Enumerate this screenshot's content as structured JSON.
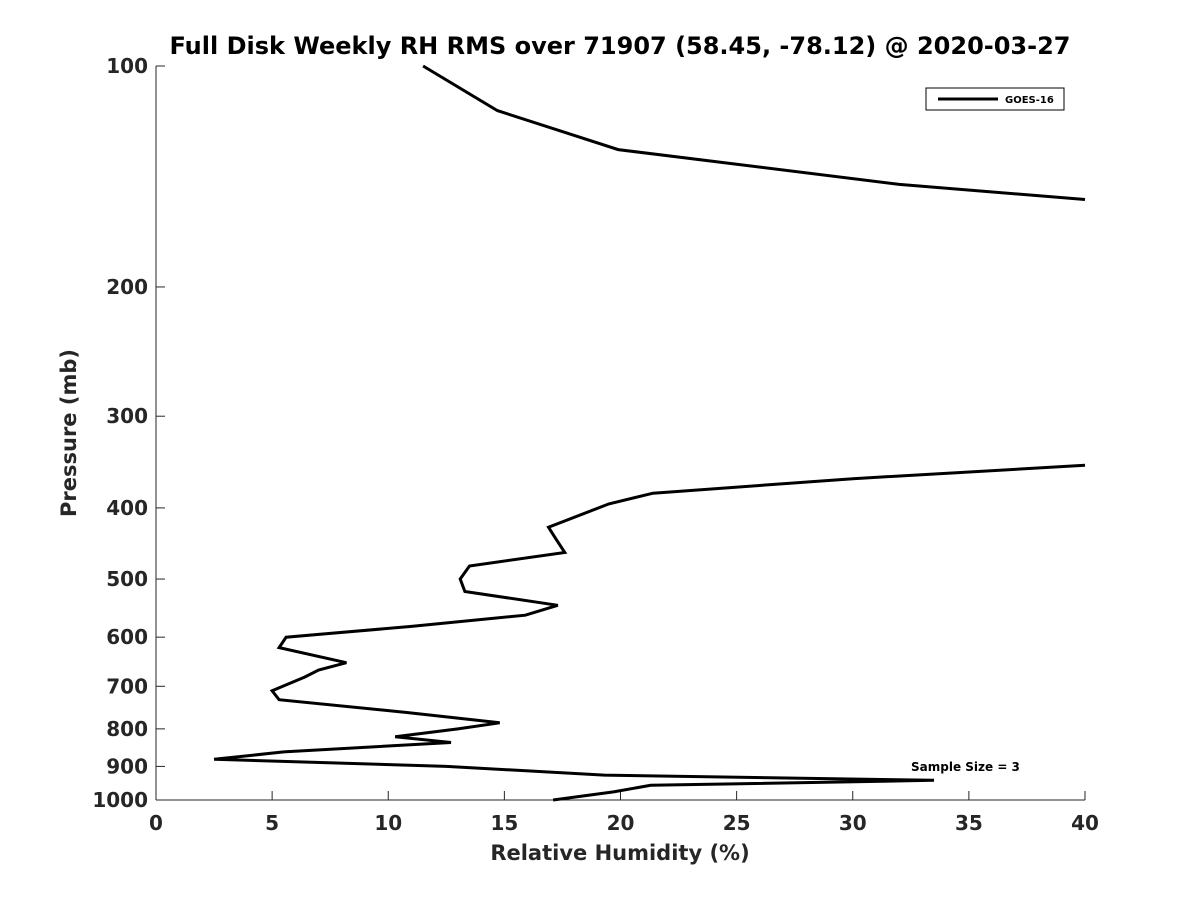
{
  "chart_data": {
    "type": "line",
    "title": "Full Disk Weekly RH RMS over 71907 (58.45, -78.12) @ 2020-03-27",
    "xlabel": "Relative Humidity (%)",
    "ylabel": "Pressure (mb)",
    "xlim": [
      0,
      40
    ],
    "ylim": [
      100,
      1000
    ],
    "y_scale": "log",
    "y_reversed": true,
    "grid": false,
    "legend_position": "top-right",
    "x_ticks": [
      "0",
      "5",
      "10",
      "15",
      "20",
      "25",
      "30",
      "35",
      "40"
    ],
    "y_ticks": [
      "100",
      "200",
      "300",
      "400",
      "500",
      "600",
      "700",
      "800",
      "900",
      "1000"
    ],
    "annotation": "Sample Size = 3",
    "series": [
      {
        "name": "GOES-16",
        "color": "#000000",
        "points": [
          [
            11.5,
            100
          ],
          [
            14.7,
            115
          ],
          [
            19.9,
            130
          ],
          [
            32.0,
            145
          ],
          [
            40.0,
            152
          ],
          [
            null,
            null
          ],
          [
            40.0,
            350
          ],
          [
            30.0,
            365
          ],
          [
            21.4,
            382
          ],
          [
            19.5,
            395
          ],
          [
            16.9,
            425
          ],
          [
            17.2,
            440
          ],
          [
            17.6,
            460
          ],
          [
            13.5,
            480
          ],
          [
            13.1,
            500
          ],
          [
            13.3,
            520
          ],
          [
            17.3,
            543
          ],
          [
            15.9,
            560
          ],
          [
            11.0,
            580
          ],
          [
            5.6,
            600
          ],
          [
            5.3,
            620
          ],
          [
            8.2,
            650
          ],
          [
            7.0,
            665
          ],
          [
            6.4,
            680
          ],
          [
            5.0,
            710
          ],
          [
            5.3,
            730
          ],
          [
            10.8,
            760
          ],
          [
            14.8,
            785
          ],
          [
            13.0,
            800
          ],
          [
            10.3,
            820
          ],
          [
            12.7,
            835
          ],
          [
            5.5,
            860
          ],
          [
            2.5,
            880
          ],
          [
            12.5,
            900
          ],
          [
            19.3,
            925
          ],
          [
            33.5,
            940
          ],
          [
            21.3,
            955
          ],
          [
            19.7,
            975
          ],
          [
            17.1,
            1000
          ]
        ]
      }
    ]
  }
}
